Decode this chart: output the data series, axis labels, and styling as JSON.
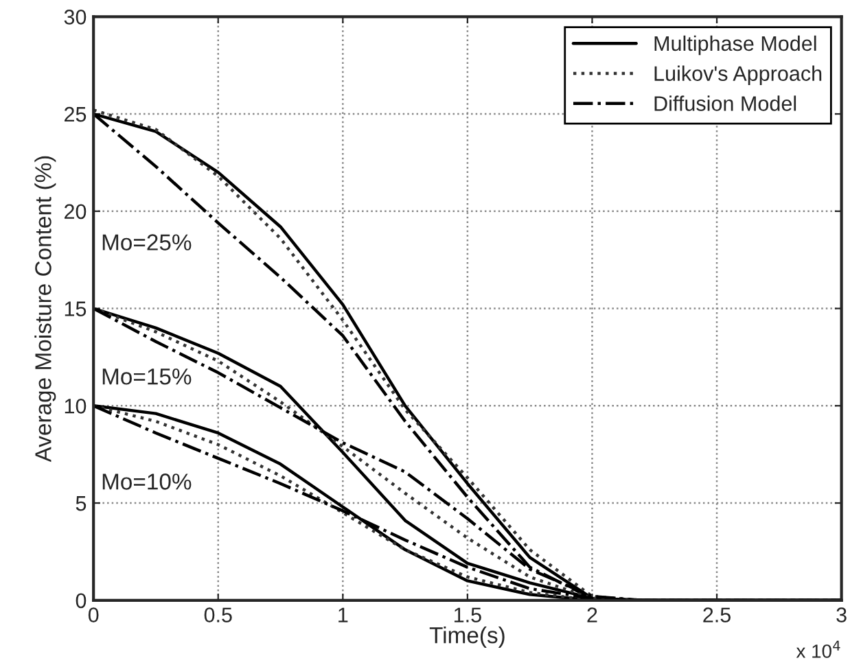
{
  "chart_data": {
    "type": "line",
    "xlabel": "Time(s)",
    "ylabel": "Average Moisture Content (%)",
    "x": [
      0,
      0.25,
      0.5,
      0.75,
      1.0,
      1.25,
      1.5,
      1.75,
      2.0,
      2.2,
      3.0
    ],
    "xlim": [
      0,
      3
    ],
    "xticks": [
      0,
      0.5,
      1,
      1.5,
      2,
      2.5,
      3
    ],
    "ylim": [
      0,
      30
    ],
    "yticks": [
      0,
      5,
      10,
      15,
      20,
      25,
      30
    ],
    "grid": true,
    "legend": "top right",
    "marker": "none",
    "series": [
      {
        "name": "Multiphase Model",
        "color": "#000000",
        "line_style": "solid",
        "values": [
          25,
          24.1,
          22.0,
          19.2,
          15.2,
          10.0,
          6.0,
          2.2,
          0.1,
          0,
          0
        ]
      },
      {
        "name": "Luikov's Approach",
        "color": "#333333",
        "line_style": "dotted",
        "values": [
          25.2,
          24.2,
          21.8,
          18.6,
          14.4,
          9.8,
          6.3,
          2.6,
          0.2,
          0,
          0
        ]
      },
      {
        "name": "Diffusion Model",
        "color": "#000000",
        "line_style": "dashdot",
        "values": [
          25,
          22.3,
          19.4,
          16.6,
          13.6,
          9.2,
          5.3,
          1.7,
          0.1,
          0,
          0
        ]
      },
      {
        "color": "#000000",
        "line_style": "solid",
        "values": [
          15,
          14.0,
          12.7,
          11.0,
          7.6,
          4.1,
          1.9,
          0.9,
          0.1,
          0,
          0
        ]
      },
      {
        "color": "#333333",
        "line_style": "dotted",
        "values": [
          15,
          13.8,
          12.3,
          10.2,
          7.9,
          5.5,
          3.2,
          1.2,
          0.1,
          0,
          0
        ]
      },
      {
        "color": "#000000",
        "line_style": "dashdot",
        "values": [
          15,
          13.3,
          11.7,
          9.9,
          8.1,
          6.6,
          4.2,
          1.6,
          0.2,
          0,
          0
        ]
      },
      {
        "color": "#000000",
        "line_style": "solid",
        "values": [
          10,
          9.6,
          8.6,
          7.0,
          4.8,
          2.6,
          1.0,
          0.3,
          0,
          0,
          0
        ]
      },
      {
        "color": "#333333",
        "line_style": "dotted",
        "values": [
          10,
          9.2,
          8.0,
          6.4,
          4.5,
          2.6,
          1.2,
          0.4,
          0,
          0,
          0
        ]
      },
      {
        "color": "#000000",
        "line_style": "dashdot",
        "values": [
          10,
          8.6,
          7.3,
          6.0,
          4.6,
          3.1,
          1.7,
          0.6,
          0.1,
          0,
          0
        ]
      }
    ],
    "annotations": [
      "Mo=25%",
      "Mo=15%",
      "Mo=10%",
      "x 10$^{4}$"
    ]
  }
}
